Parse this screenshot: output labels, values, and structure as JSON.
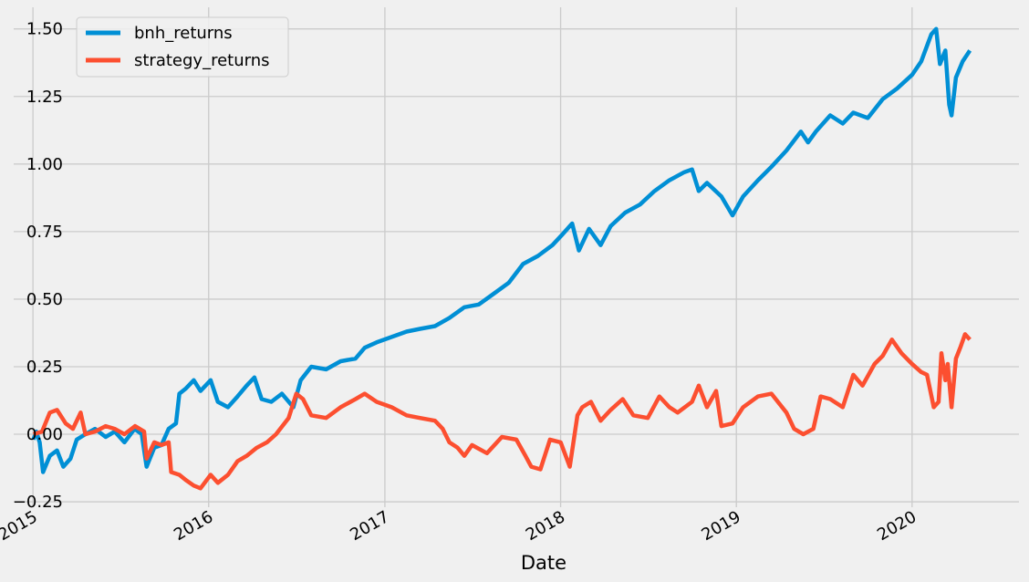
{
  "chart_data": {
    "type": "line",
    "title": "",
    "xlabel": "Date",
    "ylabel": "",
    "grid": true,
    "legend_position": "top-left",
    "x_ticks": [
      "2015",
      "2016",
      "2017",
      "2018",
      "2019",
      "2020"
    ],
    "y_ticks": [
      "−0.25",
      "0.00",
      "0.25",
      "0.50",
      "0.75",
      "1.00",
      "1.25",
      "1.50"
    ],
    "xlim": [
      "2014-11-22",
      "2020-08-10"
    ],
    "ylim": [
      -0.27,
      1.58
    ],
    "colors": {
      "background": "#f0f0f0",
      "grid": "#cbcbcb",
      "bnh": "#008fd5",
      "strategy": "#fc4f30"
    },
    "series": [
      {
        "name": "bnh_returns",
        "color": "#008fd5",
        "points": [
          [
            "2015-01-02",
            -0.02
          ],
          [
            "2015-01-08",
            0.01
          ],
          [
            "2015-01-15",
            -0.03
          ],
          [
            "2015-01-22",
            -0.14
          ],
          [
            "2015-02-05",
            -0.08
          ],
          [
            "2015-02-20",
            -0.06
          ],
          [
            "2015-03-05",
            -0.12
          ],
          [
            "2015-03-20",
            -0.09
          ],
          [
            "2015-04-02",
            -0.02
          ],
          [
            "2015-04-20",
            0.0
          ],
          [
            "2015-05-10",
            0.02
          ],
          [
            "2015-06-01",
            -0.01
          ],
          [
            "2015-06-20",
            0.01
          ],
          [
            "2015-07-10",
            -0.03
          ],
          [
            "2015-07-31",
            0.02
          ],
          [
            "2015-08-15",
            0.0
          ],
          [
            "2015-08-25",
            -0.12
          ],
          [
            "2015-09-10",
            -0.05
          ],
          [
            "2015-09-25",
            -0.04
          ],
          [
            "2015-10-10",
            0.02
          ],
          [
            "2015-10-25",
            0.04
          ],
          [
            "2015-11-01",
            0.15
          ],
          [
            "2015-11-15",
            0.17
          ],
          [
            "2015-12-01",
            0.2
          ],
          [
            "2015-12-15",
            0.16
          ],
          [
            "2016-01-05",
            0.2
          ],
          [
            "2016-01-20",
            0.12
          ],
          [
            "2016-02-10",
            0.1
          ],
          [
            "2016-03-01",
            0.14
          ],
          [
            "2016-03-20",
            0.18
          ],
          [
            "2016-04-05",
            0.21
          ],
          [
            "2016-04-20",
            0.13
          ],
          [
            "2016-05-10",
            0.12
          ],
          [
            "2016-06-01",
            0.15
          ],
          [
            "2016-06-25",
            0.1
          ],
          [
            "2016-07-10",
            0.2
          ],
          [
            "2016-08-01",
            0.25
          ],
          [
            "2016-09-01",
            0.24
          ],
          [
            "2016-10-01",
            0.27
          ],
          [
            "2016-11-01",
            0.28
          ],
          [
            "2016-11-20",
            0.32
          ],
          [
            "2016-12-15",
            0.34
          ],
          [
            "2017-01-15",
            0.36
          ],
          [
            "2017-02-15",
            0.38
          ],
          [
            "2017-03-15",
            0.39
          ],
          [
            "2017-04-15",
            0.4
          ],
          [
            "2017-05-15",
            0.43
          ],
          [
            "2017-06-15",
            0.47
          ],
          [
            "2017-07-15",
            0.48
          ],
          [
            "2017-08-15",
            0.52
          ],
          [
            "2017-09-15",
            0.56
          ],
          [
            "2017-10-15",
            0.63
          ],
          [
            "2017-11-15",
            0.66
          ],
          [
            "2017-12-15",
            0.7
          ],
          [
            "2018-01-05",
            0.74
          ],
          [
            "2018-01-25",
            0.78
          ],
          [
            "2018-02-08",
            0.68
          ],
          [
            "2018-03-01",
            0.76
          ],
          [
            "2018-03-25",
            0.7
          ],
          [
            "2018-04-15",
            0.77
          ],
          [
            "2018-05-15",
            0.82
          ],
          [
            "2018-06-15",
            0.85
          ],
          [
            "2018-07-15",
            0.9
          ],
          [
            "2018-08-15",
            0.94
          ],
          [
            "2018-09-15",
            0.97
          ],
          [
            "2018-10-01",
            0.98
          ],
          [
            "2018-10-15",
            0.9
          ],
          [
            "2018-11-01",
            0.93
          ],
          [
            "2018-12-01",
            0.88
          ],
          [
            "2018-12-24",
            0.81
          ],
          [
            "2019-01-15",
            0.88
          ],
          [
            "2019-02-15",
            0.94
          ],
          [
            "2019-03-15",
            0.99
          ],
          [
            "2019-04-15",
            1.05
          ],
          [
            "2019-05-15",
            1.12
          ],
          [
            "2019-05-30",
            1.08
          ],
          [
            "2019-06-15",
            1.12
          ],
          [
            "2019-07-15",
            1.18
          ],
          [
            "2019-08-10",
            1.15
          ],
          [
            "2019-09-01",
            1.19
          ],
          [
            "2019-10-01",
            1.17
          ],
          [
            "2019-11-01",
            1.24
          ],
          [
            "2019-12-01",
            1.28
          ],
          [
            "2020-01-01",
            1.33
          ],
          [
            "2020-01-20",
            1.38
          ],
          [
            "2020-02-10",
            1.48
          ],
          [
            "2020-02-20",
            1.5
          ],
          [
            "2020-02-28",
            1.37
          ],
          [
            "2020-03-10",
            1.42
          ],
          [
            "2020-03-18",
            1.22
          ],
          [
            "2020-03-23",
            1.18
          ],
          [
            "2020-04-01",
            1.32
          ],
          [
            "2020-04-15",
            1.38
          ],
          [
            "2020-04-30",
            1.42
          ]
        ]
      },
      {
        "name": "strategy_returns",
        "color": "#fc4f30",
        "points": [
          [
            "2015-01-02",
            0.0
          ],
          [
            "2015-01-20",
            0.01
          ],
          [
            "2015-02-05",
            0.08
          ],
          [
            "2015-02-20",
            0.09
          ],
          [
            "2015-03-10",
            0.04
          ],
          [
            "2015-03-25",
            0.02
          ],
          [
            "2015-04-10",
            0.08
          ],
          [
            "2015-04-20",
            0.0
          ],
          [
            "2015-05-10",
            0.01
          ],
          [
            "2015-06-01",
            0.03
          ],
          [
            "2015-06-20",
            0.02
          ],
          [
            "2015-07-10",
            0.0
          ],
          [
            "2015-08-01",
            0.03
          ],
          [
            "2015-08-20",
            0.01
          ],
          [
            "2015-08-25",
            -0.09
          ],
          [
            "2015-09-10",
            -0.03
          ],
          [
            "2015-09-25",
            -0.04
          ],
          [
            "2015-10-10",
            -0.03
          ],
          [
            "2015-10-15",
            -0.14
          ],
          [
            "2015-11-01",
            -0.15
          ],
          [
            "2015-11-15",
            -0.17
          ],
          [
            "2015-12-01",
            -0.19
          ],
          [
            "2015-12-15",
            -0.2
          ],
          [
            "2016-01-05",
            -0.15
          ],
          [
            "2016-01-20",
            -0.18
          ],
          [
            "2016-02-10",
            -0.15
          ],
          [
            "2016-03-01",
            -0.1
          ],
          [
            "2016-03-20",
            -0.08
          ],
          [
            "2016-04-10",
            -0.05
          ],
          [
            "2016-05-01",
            -0.03
          ],
          [
            "2016-05-20",
            0.0
          ],
          [
            "2016-06-15",
            0.06
          ],
          [
            "2016-07-01",
            0.15
          ],
          [
            "2016-07-15",
            0.13
          ],
          [
            "2016-08-01",
            0.07
          ],
          [
            "2016-09-01",
            0.06
          ],
          [
            "2016-10-01",
            0.1
          ],
          [
            "2016-11-01",
            0.13
          ],
          [
            "2016-11-20",
            0.15
          ],
          [
            "2016-12-15",
            0.12
          ],
          [
            "2017-01-15",
            0.1
          ],
          [
            "2017-02-15",
            0.07
          ],
          [
            "2017-03-15",
            0.06
          ],
          [
            "2017-04-15",
            0.05
          ],
          [
            "2017-05-01",
            0.02
          ],
          [
            "2017-05-15",
            -0.03
          ],
          [
            "2017-06-01",
            -0.05
          ],
          [
            "2017-06-15",
            -0.08
          ],
          [
            "2017-07-01",
            -0.04
          ],
          [
            "2017-08-01",
            -0.07
          ],
          [
            "2017-09-01",
            -0.01
          ],
          [
            "2017-10-01",
            -0.02
          ],
          [
            "2017-10-20",
            -0.08
          ],
          [
            "2017-11-01",
            -0.12
          ],
          [
            "2017-11-20",
            -0.13
          ],
          [
            "2017-12-10",
            -0.02
          ],
          [
            "2018-01-01",
            -0.03
          ],
          [
            "2018-01-20",
            -0.12
          ],
          [
            "2018-02-05",
            0.07
          ],
          [
            "2018-02-15",
            0.1
          ],
          [
            "2018-03-05",
            0.12
          ],
          [
            "2018-03-25",
            0.05
          ],
          [
            "2018-04-15",
            0.09
          ],
          [
            "2018-05-10",
            0.13
          ],
          [
            "2018-06-01",
            0.07
          ],
          [
            "2018-07-01",
            0.06
          ],
          [
            "2018-07-25",
            0.14
          ],
          [
            "2018-08-15",
            0.1
          ],
          [
            "2018-09-01",
            0.08
          ],
          [
            "2018-10-01",
            0.12
          ],
          [
            "2018-10-15",
            0.18
          ],
          [
            "2018-11-01",
            0.1
          ],
          [
            "2018-11-20",
            0.16
          ],
          [
            "2018-12-01",
            0.03
          ],
          [
            "2018-12-24",
            0.04
          ],
          [
            "2019-01-15",
            0.1
          ],
          [
            "2019-02-15",
            0.14
          ],
          [
            "2019-03-15",
            0.15
          ],
          [
            "2019-04-15",
            0.08
          ],
          [
            "2019-05-01",
            0.02
          ],
          [
            "2019-05-20",
            0.0
          ],
          [
            "2019-06-10",
            0.02
          ],
          [
            "2019-06-25",
            0.14
          ],
          [
            "2019-07-15",
            0.13
          ],
          [
            "2019-08-10",
            0.1
          ],
          [
            "2019-09-01",
            0.22
          ],
          [
            "2019-09-20",
            0.18
          ],
          [
            "2019-10-15",
            0.26
          ],
          [
            "2019-11-01",
            0.29
          ],
          [
            "2019-11-20",
            0.35
          ],
          [
            "2019-12-10",
            0.3
          ],
          [
            "2020-01-01",
            0.26
          ],
          [
            "2020-01-20",
            0.23
          ],
          [
            "2020-02-01",
            0.22
          ],
          [
            "2020-02-15",
            0.1
          ],
          [
            "2020-02-25",
            0.12
          ],
          [
            "2020-03-02",
            0.3
          ],
          [
            "2020-03-10",
            0.2
          ],
          [
            "2020-03-15",
            0.26
          ],
          [
            "2020-03-23",
            0.1
          ],
          [
            "2020-04-01",
            0.28
          ],
          [
            "2020-04-10",
            0.32
          ],
          [
            "2020-04-20",
            0.37
          ],
          [
            "2020-04-30",
            0.35
          ]
        ]
      }
    ]
  }
}
